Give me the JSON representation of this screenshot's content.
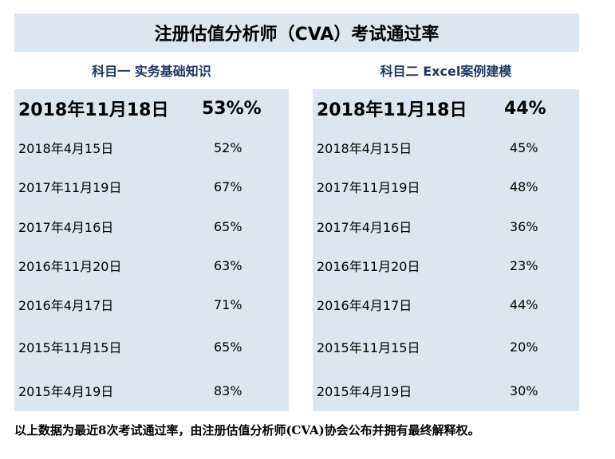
{
  "title": "注册估值分析师（CVA）考试通过率",
  "subjects": [
    {
      "heading": "科目一 实务基础知识",
      "rows": [
        {
          "date": "2018年11月18日",
          "rate": "53%%"
        },
        {
          "date": "2018年4月15日",
          "rate": "52%"
        },
        {
          "date": "2017年11月19日",
          "rate": "67%"
        },
        {
          "date": "2017年4月16日",
          "rate": "65%"
        },
        {
          "date": "2016年11月20日",
          "rate": "63%"
        },
        {
          "date": "2016年4月17日",
          "rate": "71%"
        },
        {
          "date": "2015年11月15日",
          "rate": "65%"
        },
        {
          "date": "2015年4月19日",
          "rate": "83%"
        }
      ]
    },
    {
      "heading": "科目二 Excel案例建模",
      "rows": [
        {
          "date": "2018年11月18日",
          "rate": "44%"
        },
        {
          "date": "2018年4月15日",
          "rate": "45%"
        },
        {
          "date": "2017年11月19日",
          "rate": "48%"
        },
        {
          "date": "2017年4月16日",
          "rate": "36%"
        },
        {
          "date": "2016年11月20日",
          "rate": "23%"
        },
        {
          "date": "2016年4月17日",
          "rate": "44%"
        },
        {
          "date": "2015年11月15日",
          "rate": "20%"
        },
        {
          "date": "2015年4月19日",
          "rate": "30%"
        }
      ]
    }
  ],
  "footnote": "以上数据为最近8次考试通过率，由注册估值分析师(CVA)协会公布并拥有最终解释权。"
}
